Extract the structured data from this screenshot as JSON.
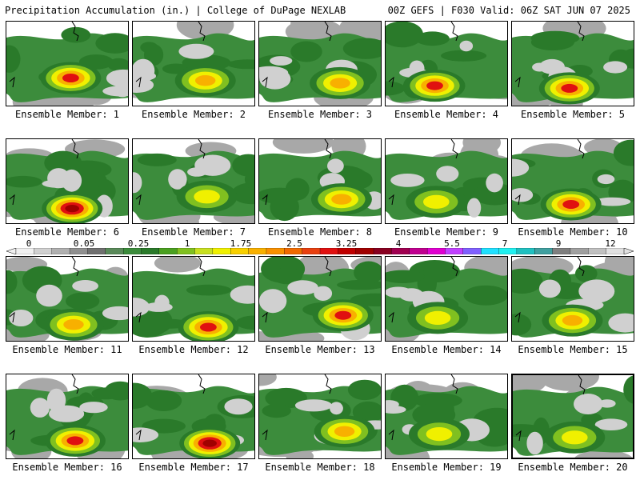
{
  "header": {
    "title": "Precipitation Accumulation (in.) | College of DuPage NEXLAB",
    "run_info": "00Z GEFS | F030 Valid: 06Z SAT JUN 07 2025"
  },
  "members": [
    {
      "label": "Ensemble Member: 1",
      "max": "red"
    },
    {
      "label": "Ensemble Member: 2",
      "max": "orange"
    },
    {
      "label": "Ensemble Member: 3",
      "max": "orange"
    },
    {
      "label": "Ensemble Member: 4",
      "max": "red"
    },
    {
      "label": "Ensemble Member: 5",
      "max": "red"
    },
    {
      "label": "Ensemble Member: 6",
      "max": "darkred"
    },
    {
      "label": "Ensemble Member: 7",
      "max": "yellow"
    },
    {
      "label": "Ensemble Member: 8",
      "max": "orange"
    },
    {
      "label": "Ensemble Member: 9",
      "max": "yellow"
    },
    {
      "label": "Ensemble Member: 10",
      "max": "red"
    },
    {
      "label": "Ensemble Member: 11",
      "max": "orange"
    },
    {
      "label": "Ensemble Member: 12",
      "max": "red"
    },
    {
      "label": "Ensemble Member: 13",
      "max": "red"
    },
    {
      "label": "Ensemble Member: 14",
      "max": "yellow"
    },
    {
      "label": "Ensemble Member: 15",
      "max": "orange"
    },
    {
      "label": "Ensemble Member: 16",
      "max": "red"
    },
    {
      "label": "Ensemble Member: 17",
      "max": "darkred"
    },
    {
      "label": "Ensemble Member: 18",
      "max": "orange"
    },
    {
      "label": "Ensemble Member: 19",
      "max": "yellow"
    },
    {
      "label": "Ensemble Member: 20",
      "max": "yellow"
    }
  ],
  "colorbar": {
    "ticks": [
      "0",
      "0.05",
      "0.25",
      "1",
      "1.75",
      "2.5",
      "3.25",
      "4",
      "5.5",
      "7",
      "9",
      "12"
    ],
    "colors": [
      "#f0f0f0",
      "#d0d0d0",
      "#b0b0b0",
      "#909090",
      "#707070",
      "#5a8a5a",
      "#3c8c3c",
      "#2a7a2a",
      "#4aa020",
      "#80c020",
      "#c8e020",
      "#f0f000",
      "#f8d000",
      "#f8b000",
      "#f89000",
      "#f06a00",
      "#e84010",
      "#e01010",
      "#c00000",
      "#a00000",
      "#880020",
      "#a00050",
      "#c00090",
      "#e000d0",
      "#c040ff",
      "#8060ff",
      "#20e0ff",
      "#20f0f0",
      "#20c0c0",
      "#40a0a0",
      "#808080",
      "#a0a0a0",
      "#c0c0c0",
      "#e0e0e0"
    ]
  }
}
